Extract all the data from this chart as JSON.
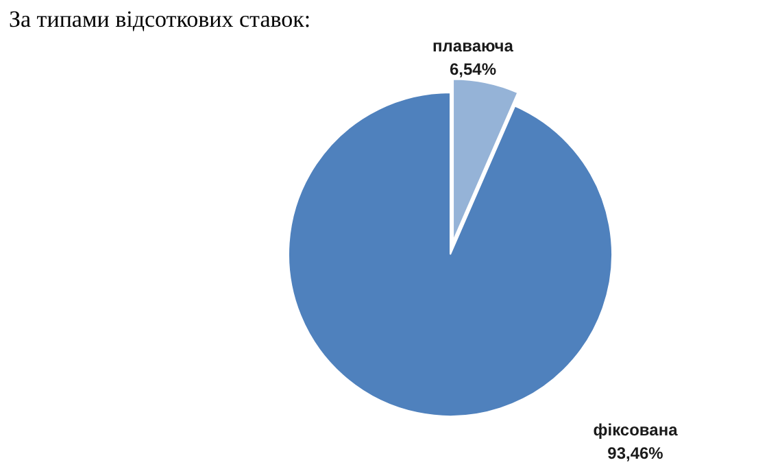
{
  "chart_data": {
    "type": "pie",
    "title": "За типами відсоткових ставок:",
    "categories": [
      "плаваюча",
      "фіксована"
    ],
    "values": [
      6.54,
      93.46
    ],
    "colors": [
      "#95b3d7",
      "#4f81bd"
    ],
    "value_labels": [
      "6,54%",
      "93,46%"
    ]
  }
}
